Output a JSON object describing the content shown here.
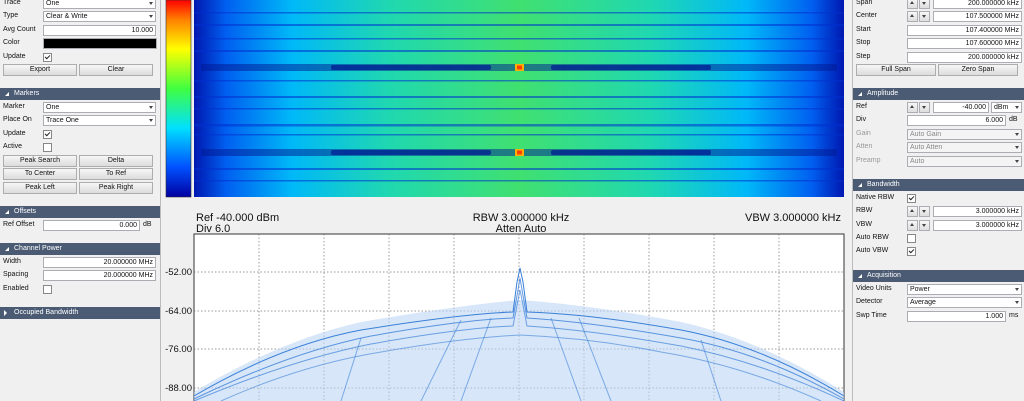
{
  "left": {
    "sections": [
      {
        "rows": [
          {
            "label": "Trace",
            "select": "One"
          },
          {
            "label": "Type",
            "select": "Clear & Write"
          },
          {
            "label": "Avg Count",
            "input": "10.000"
          },
          {
            "label": "Color",
            "color": "#000000"
          },
          {
            "label": "Update",
            "checked": true
          }
        ],
        "buttons": [
          "Export",
          "Clear"
        ]
      },
      {
        "header": "Markers",
        "rows": [
          {
            "label": "Marker",
            "select": "One"
          },
          {
            "label": "Place On",
            "select": "Trace One"
          },
          {
            "label": "Update",
            "checked": true
          },
          {
            "label": "Active",
            "checked": false
          }
        ],
        "buttons": [
          "Peak Search",
          "Delta",
          "To Center",
          "To Ref",
          "Peak Left",
          "Peak Right"
        ]
      },
      {
        "header": "Offsets",
        "rows": [
          {
            "label": "Ref Offset",
            "input": "0.000",
            "unit": "dB"
          }
        ]
      },
      {
        "header": "Channel Power",
        "rows": [
          {
            "label": "Width",
            "input": "20.000000 MHz"
          },
          {
            "label": "Spacing",
            "input": "20.000000 MHz"
          },
          {
            "label": "Enabled",
            "checked": false
          }
        ]
      },
      {
        "header": "Occupied Bandwidth",
        "collapsed": true
      }
    ]
  },
  "right": {
    "sections": [
      {
        "rows": [
          {
            "label": "Span",
            "spin": "200.000000 kHz"
          },
          {
            "label": "Center",
            "spin": "107.500000 MHz"
          },
          {
            "label": "Start",
            "input": "107.400000 MHz"
          },
          {
            "label": "Stop",
            "input": "107.600000 MHz"
          },
          {
            "label": "Step",
            "input": "200.000000 kHz"
          }
        ],
        "buttons": [
          "Full Span",
          "Zero Span"
        ]
      },
      {
        "header": "Amplitude",
        "rows": [
          {
            "label": "Ref",
            "spin": "-40.000",
            "select": "dBm"
          },
          {
            "label": "Div",
            "input": "6.000",
            "unit": "dB"
          },
          {
            "label": "Gain",
            "select": "Auto Gain",
            "disabled": true
          },
          {
            "label": "Atten",
            "select": "Auto Atten",
            "disabled": true
          },
          {
            "label": "Preamp",
            "select": "Auto",
            "disabled": true
          }
        ]
      },
      {
        "header": "Bandwidth",
        "rows": [
          {
            "label": "Native RBW",
            "checked": true
          },
          {
            "label": "RBW",
            "spin": "3.000000 kHz"
          },
          {
            "label": "VBW",
            "spin": "3.000000 kHz"
          },
          {
            "label": "Auto RBW",
            "checked": false
          },
          {
            "label": "Auto VBW",
            "checked": true
          }
        ]
      },
      {
        "header": "Acquisition",
        "rows": [
          {
            "label": "Video Units",
            "select": "Power"
          },
          {
            "label": "Detector",
            "select": "Average"
          },
          {
            "label": "Swp Time",
            "input": "1.000",
            "unit": "ms"
          }
        ]
      }
    ]
  },
  "plot": {
    "ref": "Ref -40.000 dBm",
    "div": "Div 6.0",
    "rbw": "RBW 3.000000 kHz",
    "atten": "Atten Auto",
    "vbw": "VBW 3.000000 kHz",
    "y_labels": [
      "-52.00",
      "-64.00",
      "-76.00",
      "-88.00"
    ]
  }
}
